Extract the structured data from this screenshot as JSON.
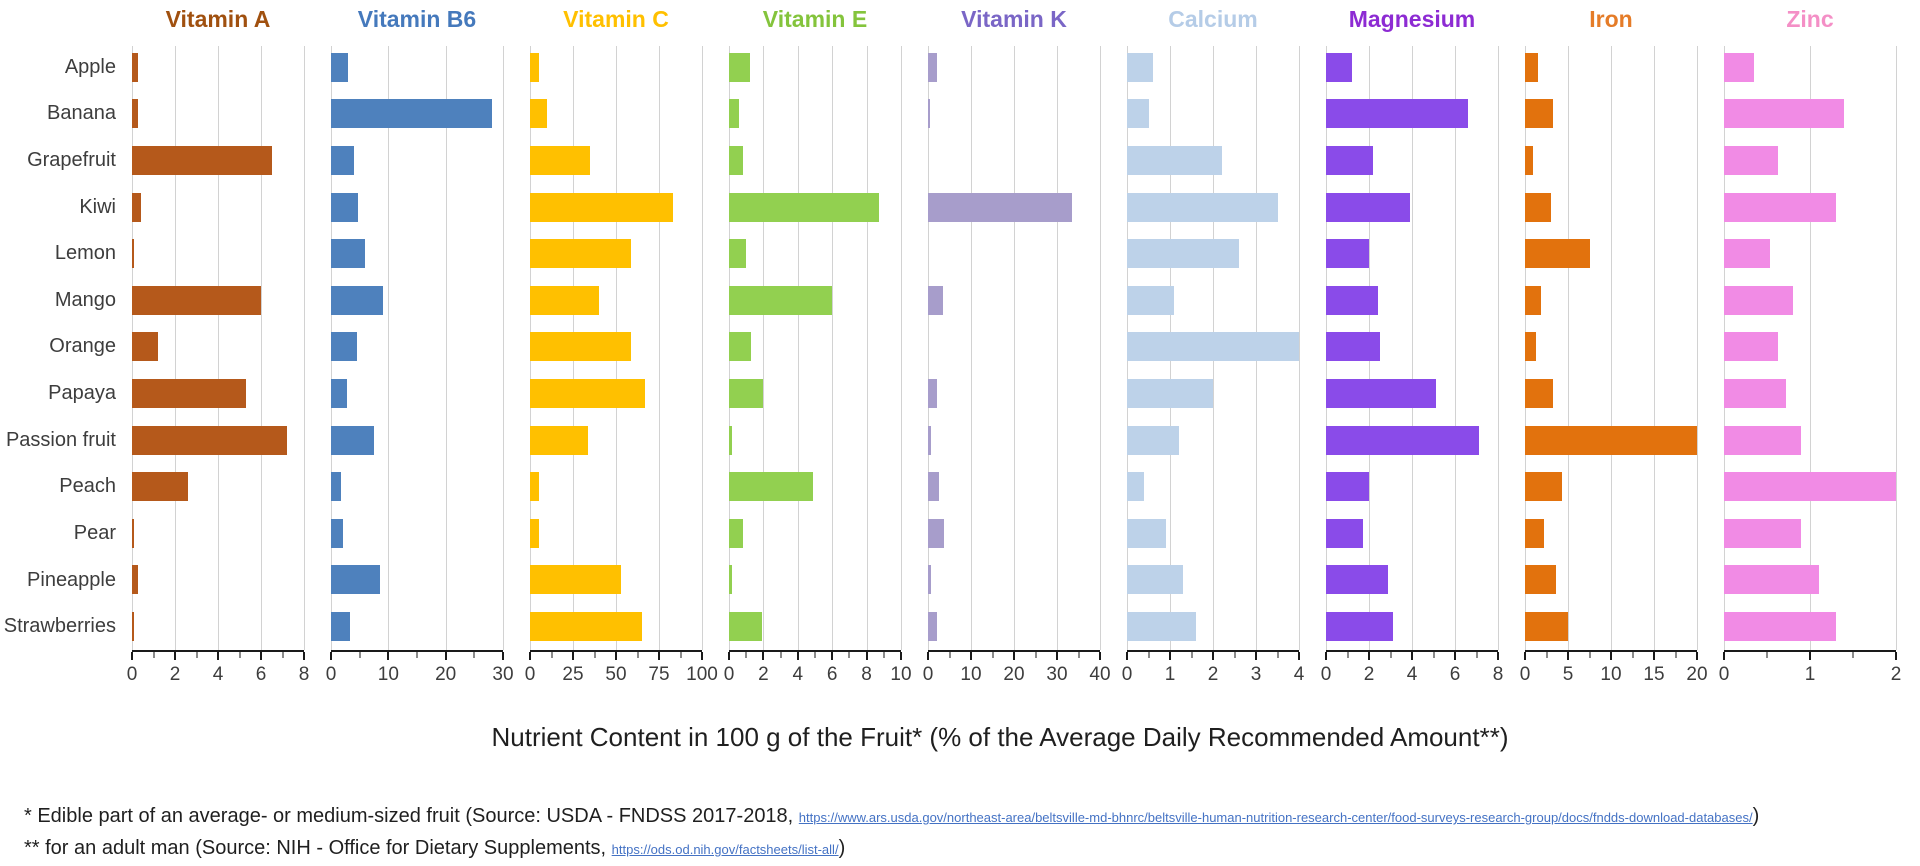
{
  "title": "Nutrient Content in 100 g of the Fruit* (% of the Average Daily Recommended Amount**)",
  "footnotes": [
    {
      "text": "* Edible part of an average- or medium-sized fruit (Source: USDA - FNDSS 2017-2018, ",
      "link": "https://www.ars.usda.gov/northeast-area/beltsville-md-bhnrc/beltsville-human-nutrition-research-center/food-surveys-research-group/docs/fndds-download-databases/",
      "suffix": ")"
    },
    {
      "text": "** for an adult man (Source: NIH - Office for Dietary Supplements, ",
      "link": "https://ods.od.nih.gov/factsheets/list-all/",
      "suffix": ")"
    }
  ],
  "chart_data": {
    "type": "bar",
    "orientation": "horizontal",
    "grid": true,
    "categories": [
      "Apple",
      "Banana",
      "Grapefruit",
      "Kiwi",
      "Lemon",
      "Mango",
      "Orange",
      "Papaya",
      "Passion fruit",
      "Peach",
      "Pear",
      "Pineapple",
      "Strawberries"
    ],
    "panels": [
      {
        "name": "Vitamin A",
        "title_color": "#A0500F",
        "bar_color": "#B5591B",
        "xlim": [
          0,
          8
        ],
        "ticks": [
          0,
          2,
          4,
          6,
          8
        ],
        "values": [
          0.3,
          0.3,
          6.5,
          0.4,
          0.1,
          6.0,
          1.2,
          5.3,
          7.2,
          2.6,
          0.1,
          0.3,
          0.1
        ]
      },
      {
        "name": "Vitamin B6",
        "title_color": "#4579BC",
        "bar_color": "#4E81BD",
        "xlim": [
          0,
          30
        ],
        "ticks": [
          0,
          10,
          20,
          30
        ],
        "values": [
          3.0,
          28.0,
          4.0,
          4.7,
          6.0,
          9.1,
          4.6,
          2.8,
          7.5,
          1.7,
          2.1,
          8.6,
          3.4
        ]
      },
      {
        "name": "Vitamin C",
        "title_color": "#FFC000",
        "bar_color": "#FFC000",
        "xlim": [
          0,
          100
        ],
        "ticks": [
          0,
          25,
          50,
          75,
          100
        ],
        "values": [
          5,
          10,
          35,
          83,
          59,
          40,
          59,
          67,
          34,
          5,
          5,
          53,
          65
        ]
      },
      {
        "name": "Vitamin E",
        "title_color": "#84C43C",
        "bar_color": "#92D050",
        "xlim": [
          0,
          10
        ],
        "ticks": [
          0,
          2,
          4,
          6,
          8,
          10
        ],
        "values": [
          1.2,
          0.6,
          0.8,
          8.7,
          1.0,
          6.0,
          1.3,
          2.0,
          0.15,
          4.9,
          0.8,
          0.15,
          1.9
        ]
      },
      {
        "name": "Vitamin K",
        "title_color": "#7A66C6",
        "bar_color": "#A79DCB",
        "xlim": [
          0,
          40
        ],
        "ticks": [
          0,
          10,
          20,
          30,
          40
        ],
        "values": [
          2.0,
          0.5,
          0,
          33.5,
          0,
          3.5,
          0,
          2.2,
          0.6,
          2.6,
          3.7,
          0.6,
          2.0
        ]
      },
      {
        "name": "Calcium",
        "title_color": "#B5CCE7",
        "bar_color": "#BDD2E9",
        "xlim": [
          0,
          4
        ],
        "ticks": [
          0,
          1,
          2,
          3,
          4
        ],
        "values": [
          0.6,
          0.5,
          2.2,
          3.5,
          2.6,
          1.1,
          4.0,
          2.0,
          1.2,
          0.4,
          0.9,
          1.3,
          1.6
        ]
      },
      {
        "name": "Magnesium",
        "title_color": "#8D2BD3",
        "bar_color": "#8A4BE9",
        "xlim": [
          0,
          8
        ],
        "ticks": [
          0,
          2,
          4,
          6,
          8
        ],
        "values": [
          1.2,
          6.6,
          2.2,
          3.9,
          2.0,
          2.4,
          2.5,
          5.1,
          7.1,
          2.0,
          1.7,
          2.9,
          3.1
        ]
      },
      {
        "name": "Iron",
        "title_color": "#E57C28",
        "bar_color": "#E2720D",
        "xlim": [
          0,
          20
        ],
        "ticks": [
          0,
          5,
          10,
          15,
          20
        ],
        "values": [
          1.5,
          3.3,
          0.9,
          3.0,
          7.5,
          1.9,
          1.3,
          3.2,
          20.0,
          4.3,
          2.2,
          3.6,
          5.0
        ]
      },
      {
        "name": "Zinc",
        "title_color": "#F48FC6",
        "bar_color": "#F18BE5",
        "xlim": [
          0,
          2
        ],
        "ticks": [
          0,
          1,
          2
        ],
        "values": [
          0.35,
          1.4,
          0.63,
          1.3,
          0.54,
          0.8,
          0.63,
          0.72,
          0.9,
          2.0,
          0.9,
          1.1,
          1.3
        ]
      }
    ]
  }
}
